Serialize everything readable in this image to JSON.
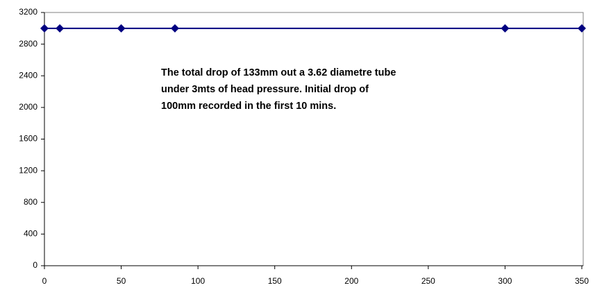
{
  "chart_data": {
    "type": "line",
    "annotation": [
      "The total drop of 133mm out a 3.62 diametre tube",
      "under 3mts of head pressure. Initial drop of",
      "100mm recorded in the first 10 mins."
    ],
    "x": [
      0,
      10,
      50,
      85,
      300,
      350
    ],
    "series": [
      {
        "name": null,
        "color": "#000080",
        "values": [
          3000,
          3000,
          3000,
          3000,
          3000,
          3000
        ]
      }
    ],
    "xlim": [
      0,
      350
    ],
    "xticks": [
      0,
      50,
      100,
      150,
      200,
      250,
      300,
      350
    ],
    "ylim": [
      0,
      3200
    ],
    "yticks": [
      0,
      400,
      800,
      1200,
      1600,
      2000,
      2400,
      2800,
      3200
    ],
    "grid": false,
    "legend": false
  }
}
